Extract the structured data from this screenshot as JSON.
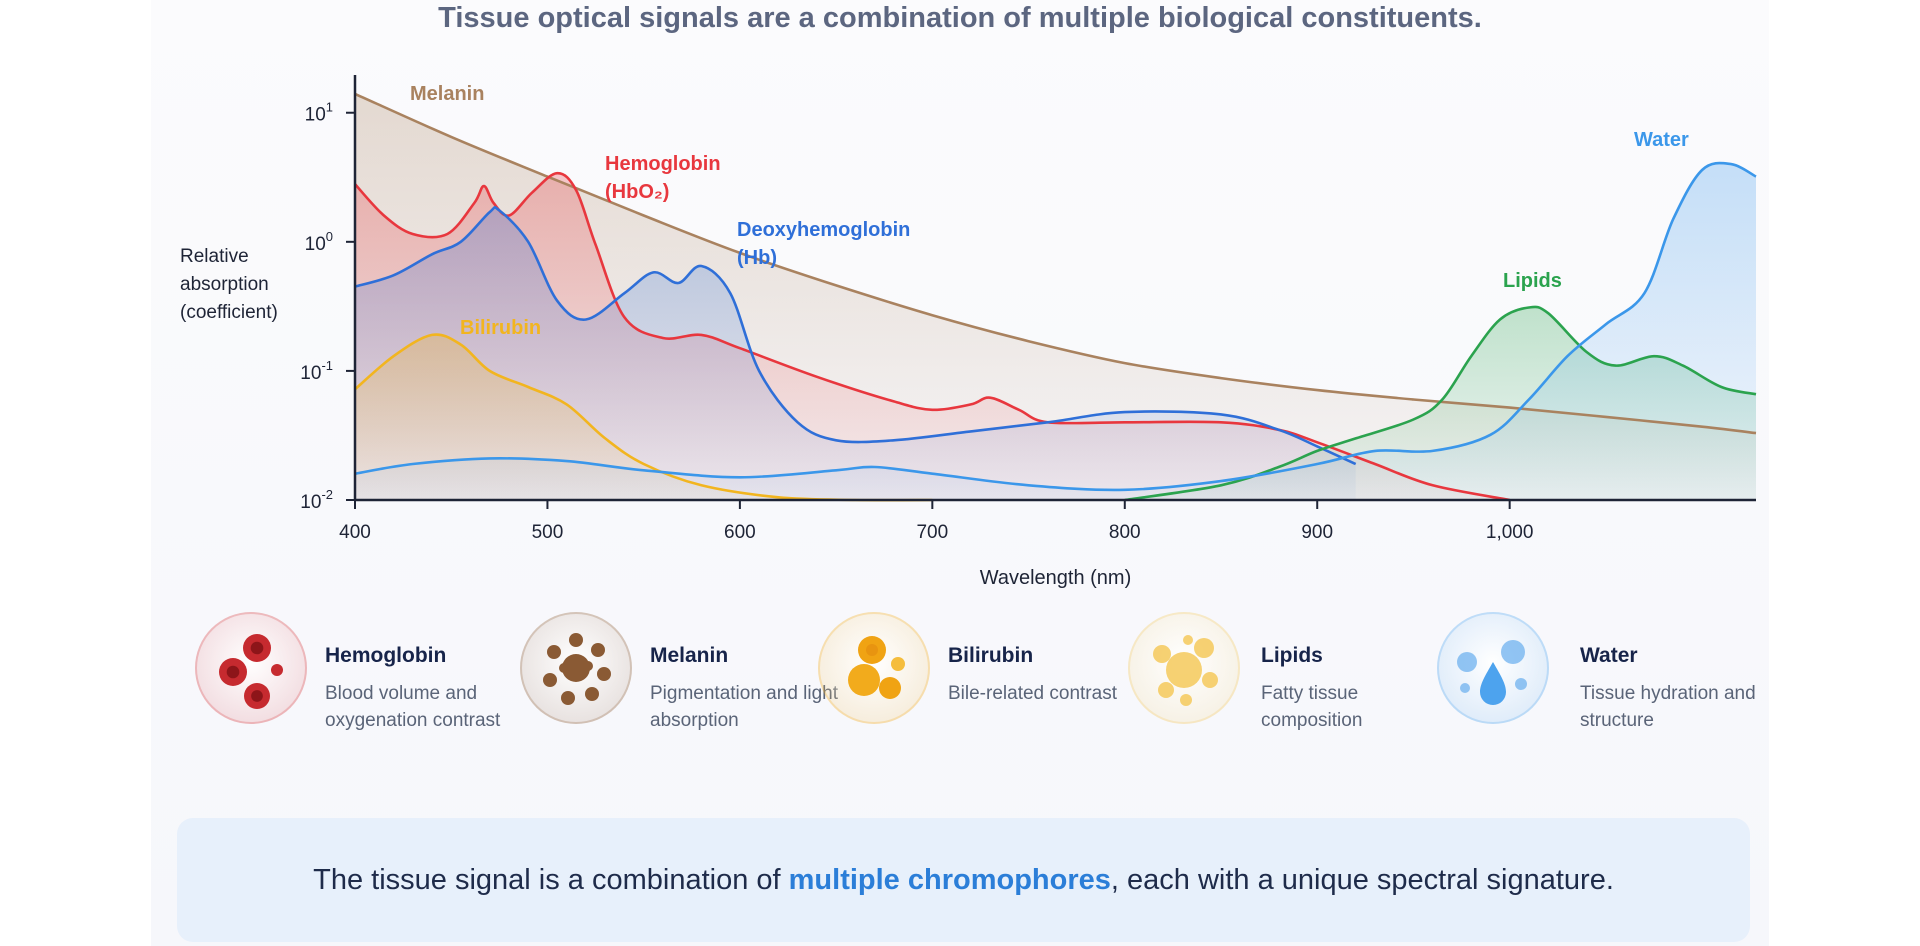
{
  "headline": "Tissue optical signals are a combination of multiple biological constituents.",
  "chart_data": {
    "type": "line",
    "xlabel": "Wavelength (nm)",
    "ylabel": [
      "Relative",
      "absorption",
      "(coefficient)"
    ],
    "y_scale": "log",
    "xlim": [
      400,
      1128
    ],
    "ylim": [
      0.01,
      15
    ],
    "x_ticks": [
      400,
      500,
      600,
      700,
      800,
      900,
      1000
    ],
    "x_tick_labels": [
      "400",
      "500",
      "600",
      "700",
      "800",
      "900",
      "1,000"
    ],
    "y_ticks": [
      {
        "base": "10",
        "exp": "1",
        "value": 10
      },
      {
        "base": "10",
        "exp": "0",
        "value": 1
      },
      {
        "base": "10",
        "exp": "-1",
        "value": 0.1
      },
      {
        "base": "10",
        "exp": "-2",
        "value": 0.01
      }
    ],
    "grid": false,
    "series": [
      {
        "name": "Melanin",
        "label_lines": [
          "Melanin"
        ],
        "color": "#a9825f",
        "x": [
          400,
          450,
          500,
          550,
          600,
          650,
          700,
          750,
          800,
          850,
          900,
          950,
          1000,
          1050,
          1100,
          1128
        ],
        "y": [
          14,
          6.5,
          3.2,
          1.6,
          0.82,
          0.46,
          0.27,
          0.17,
          0.115,
          0.088,
          0.071,
          0.06,
          0.052,
          0.044,
          0.037,
          0.033
        ]
      },
      {
        "name": "Hemoglobin (HbO2)",
        "label_lines": [
          "Hemoglobin",
          "(HbO₂)"
        ],
        "color": "#e8373e",
        "x": [
          400,
          415,
          430,
          448,
          462,
          467,
          472,
          480,
          492,
          505,
          515,
          525,
          540,
          560,
          580,
          600,
          640,
          680,
          700,
          720,
          730,
          745,
          760,
          800,
          850,
          880,
          900,
          930,
          960,
          1000
        ],
        "y": [
          2.8,
          1.6,
          1.15,
          1.15,
          2.0,
          2.7,
          2.0,
          1.6,
          2.4,
          3.4,
          2.5,
          0.95,
          0.26,
          0.18,
          0.19,
          0.15,
          0.09,
          0.058,
          0.05,
          0.055,
          0.062,
          0.05,
          0.04,
          0.04,
          0.04,
          0.035,
          0.028,
          0.019,
          0.013,
          0.01
        ]
      },
      {
        "name": "Deoxyhemoglobin (Hb)",
        "label_lines": [
          "Deoxyhemoglobin",
          "(Hb)"
        ],
        "color": "#2f6fd8",
        "x": [
          400,
          420,
          440,
          455,
          470,
          475,
          490,
          505,
          520,
          540,
          555,
          568,
          580,
          595,
          610,
          630,
          650,
          680,
          720,
          760,
          800,
          850,
          880,
          900,
          920
        ],
        "y": [
          0.45,
          0.55,
          0.8,
          1.0,
          1.7,
          1.75,
          1.0,
          0.35,
          0.25,
          0.4,
          0.58,
          0.48,
          0.65,
          0.4,
          0.1,
          0.04,
          0.029,
          0.029,
          0.034,
          0.04,
          0.048,
          0.046,
          0.035,
          0.026,
          0.019
        ]
      },
      {
        "name": "Bilirubin",
        "label_lines": [
          "Bilirubin"
        ],
        "color": "#f2b51f",
        "x": [
          400,
          420,
          440,
          455,
          470,
          490,
          510,
          530,
          550,
          580,
          620,
          660,
          700
        ],
        "y": [
          0.072,
          0.13,
          0.19,
          0.16,
          0.1,
          0.075,
          0.055,
          0.03,
          0.019,
          0.013,
          0.0105,
          0.01,
          0.01
        ]
      },
      {
        "name": "Lipids",
        "label_lines": [
          "Lipids"
        ],
        "color": "#2ba34e",
        "x": [
          800,
          850,
          880,
          900,
          920,
          950,
          965,
          980,
          995,
          1010,
          1020,
          1040,
          1055,
          1075,
          1090,
          1110,
          1128
        ],
        "y": [
          0.01,
          0.013,
          0.018,
          0.024,
          0.03,
          0.042,
          0.06,
          0.13,
          0.25,
          0.31,
          0.28,
          0.14,
          0.11,
          0.13,
          0.11,
          0.075,
          0.066
        ]
      },
      {
        "name": "Water",
        "label_lines": [
          "Water"
        ],
        "color": "#3b97ea",
        "x": [
          400,
          430,
          470,
          510,
          550,
          600,
          650,
          670,
          700,
          750,
          800,
          850,
          900,
          930,
          960,
          990,
          1010,
          1030,
          1050,
          1070,
          1085,
          1100,
          1115,
          1128
        ],
        "y": [
          0.016,
          0.019,
          0.021,
          0.02,
          0.017,
          0.015,
          0.017,
          0.018,
          0.016,
          0.013,
          0.012,
          0.014,
          0.019,
          0.024,
          0.024,
          0.032,
          0.06,
          0.13,
          0.23,
          0.4,
          1.5,
          3.6,
          4.0,
          3.2
        ]
      }
    ]
  },
  "legend": [
    {
      "name": "Hemoglobin",
      "desc": "Blood volume and oxygenation contrast",
      "color": "#d63a3e",
      "icon": "red-blood-cells-icon"
    },
    {
      "name": "Melanin",
      "desc": "Pigmentation and light absorption",
      "color": "#8a5a34",
      "icon": "melanin-granules-icon"
    },
    {
      "name": "Bilirubin",
      "desc": "Bile-related contrast",
      "color": "#f2ab1c",
      "icon": "bilirubin-icon"
    },
    {
      "name": "Lipids",
      "desc": "Fatty tissue composition",
      "color": "#f4c95a",
      "icon": "lipid-droplets-icon"
    },
    {
      "name": "Water",
      "desc": "Tissue hydration and structure",
      "color": "#4da3ee",
      "icon": "water-droplet-icon"
    }
  ],
  "callout": {
    "before": "The tissue signal is a combination of ",
    "highlight": "multiple chromophores",
    "after": ", each with a unique spectral signature."
  }
}
